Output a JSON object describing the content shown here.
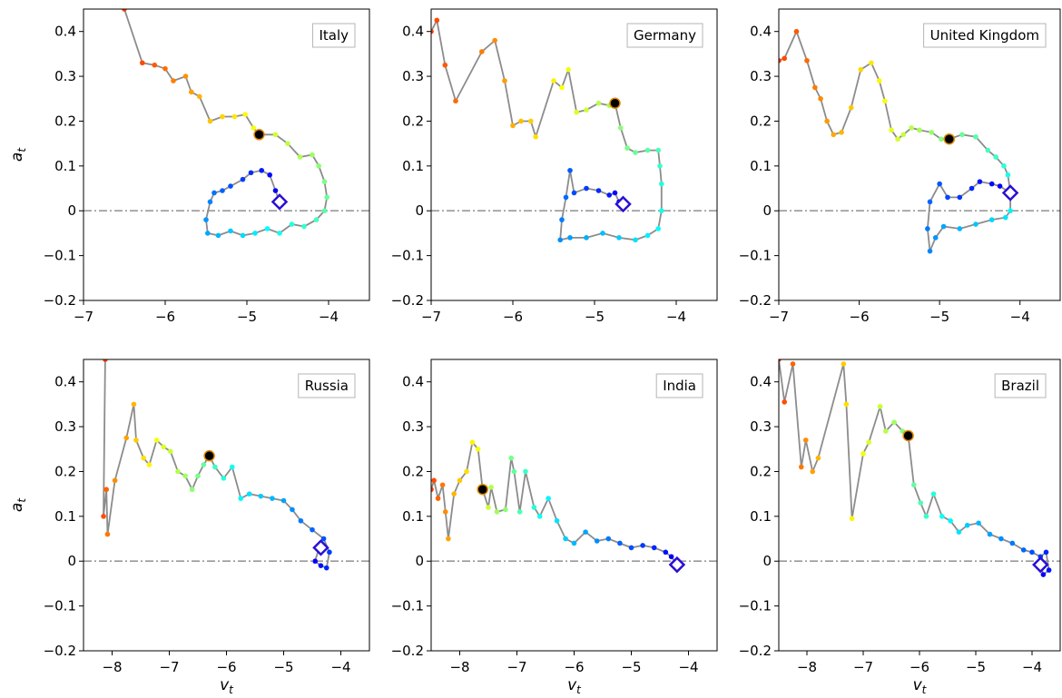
{
  "chart_data": [
    {
      "type": "scatter",
      "title": "Italy",
      "xlabel": "",
      "ylabel": "a_t",
      "xlim": [
        -7,
        -3.5
      ],
      "ylim": [
        -0.2,
        0.45
      ],
      "xticks": [
        -7,
        -6,
        -5,
        -4
      ],
      "yticks": [
        -0.2,
        -0.1,
        0.0,
        0.1,
        0.2,
        0.3,
        0.4
      ],
      "reference_line_y": 0,
      "start_marker": [
        -4.85,
        0.17
      ],
      "end_marker": [
        -4.6,
        0.02
      ],
      "points": [
        [
          -6.5,
          0.45
        ],
        [
          -6.28,
          0.33
        ],
        [
          -6.13,
          0.325
        ],
        [
          -6.0,
          0.317
        ],
        [
          -5.9,
          0.29
        ],
        [
          -5.75,
          0.3
        ],
        [
          -5.68,
          0.265
        ],
        [
          -5.58,
          0.255
        ],
        [
          -5.45,
          0.2
        ],
        [
          -5.3,
          0.21
        ],
        [
          -5.15,
          0.21
        ],
        [
          -5.02,
          0.215
        ],
        [
          -4.92,
          0.185
        ],
        [
          -4.85,
          0.17
        ],
        [
          -4.65,
          0.17
        ],
        [
          -4.5,
          0.15
        ],
        [
          -4.35,
          0.12
        ],
        [
          -4.2,
          0.125
        ],
        [
          -4.12,
          0.1
        ],
        [
          -4.05,
          0.065
        ],
        [
          -4.02,
          0.03
        ],
        [
          -4.05,
          0.0
        ],
        [
          -4.15,
          -0.02
        ],
        [
          -4.3,
          -0.035
        ],
        [
          -4.45,
          -0.03
        ],
        [
          -4.6,
          -0.05
        ],
        [
          -4.75,
          -0.04
        ],
        [
          -4.9,
          -0.05
        ],
        [
          -5.05,
          -0.055
        ],
        [
          -5.2,
          -0.045
        ],
        [
          -5.35,
          -0.055
        ],
        [
          -5.48,
          -0.05
        ],
        [
          -5.5,
          -0.02
        ],
        [
          -5.45,
          0.02
        ],
        [
          -5.4,
          0.04
        ],
        [
          -5.3,
          0.045
        ],
        [
          -5.2,
          0.055
        ],
        [
          -5.05,
          0.07
        ],
        [
          -4.95,
          0.085
        ],
        [
          -4.82,
          0.09
        ],
        [
          -4.72,
          0.08
        ],
        [
          -4.65,
          0.045
        ],
        [
          -4.6,
          0.02
        ]
      ]
    },
    {
      "type": "scatter",
      "title": "Germany",
      "xlabel": "",
      "ylabel": "",
      "xlim": [
        -7,
        -3.5
      ],
      "ylim": [
        -0.2,
        0.45
      ],
      "xticks": [
        -7,
        -6,
        -5,
        -4
      ],
      "yticks": [
        -0.2,
        -0.1,
        0.0,
        0.1,
        0.2,
        0.3,
        0.4
      ],
      "reference_line_y": 0,
      "start_marker": [
        -4.75,
        0.24
      ],
      "end_marker": [
        -4.65,
        0.015
      ],
      "points": [
        [
          -7.0,
          0.4
        ],
        [
          -6.93,
          0.425
        ],
        [
          -6.83,
          0.325
        ],
        [
          -6.7,
          0.245
        ],
        [
          -6.38,
          0.355
        ],
        [
          -6.22,
          0.38
        ],
        [
          -6.1,
          0.29
        ],
        [
          -6.0,
          0.19
        ],
        [
          -5.9,
          0.2
        ],
        [
          -5.78,
          0.2
        ],
        [
          -5.72,
          0.165
        ],
        [
          -5.5,
          0.29
        ],
        [
          -5.4,
          0.275
        ],
        [
          -5.32,
          0.315
        ],
        [
          -5.22,
          0.22
        ],
        [
          -5.1,
          0.225
        ],
        [
          -4.95,
          0.24
        ],
        [
          -4.82,
          0.235
        ],
        [
          -4.75,
          0.24
        ],
        [
          -4.68,
          0.185
        ],
        [
          -4.6,
          0.14
        ],
        [
          -4.5,
          0.13
        ],
        [
          -4.35,
          0.135
        ],
        [
          -4.22,
          0.135
        ],
        [
          -4.2,
          0.1
        ],
        [
          -4.18,
          0.06
        ],
        [
          -4.18,
          0.0
        ],
        [
          -4.22,
          -0.04
        ],
        [
          -4.35,
          -0.055
        ],
        [
          -4.5,
          -0.065
        ],
        [
          -4.7,
          -0.06
        ],
        [
          -4.9,
          -0.05
        ],
        [
          -5.1,
          -0.06
        ],
        [
          -5.3,
          -0.06
        ],
        [
          -5.42,
          -0.065
        ],
        [
          -5.4,
          -0.02
        ],
        [
          -5.35,
          0.03
        ],
        [
          -5.3,
          0.09
        ],
        [
          -5.25,
          0.04
        ],
        [
          -5.1,
          0.05
        ],
        [
          -4.95,
          0.045
        ],
        [
          -4.82,
          0.035
        ],
        [
          -4.75,
          0.04
        ],
        [
          -4.7,
          0.02
        ],
        [
          -4.65,
          0.015
        ]
      ]
    },
    {
      "type": "scatter",
      "title": "United Kingdom",
      "xlabel": "",
      "ylabel": "",
      "xlim": [
        -7,
        -3.5
      ],
      "ylim": [
        -0.2,
        0.45
      ],
      "xticks": [
        -7,
        -6,
        -5,
        -4
      ],
      "yticks": [
        -0.2,
        -0.1,
        0.0,
        0.1,
        0.2,
        0.3,
        0.4
      ],
      "reference_line_y": 0,
      "start_marker": [
        -4.88,
        0.16
      ],
      "end_marker": [
        -4.12,
        0.04
      ],
      "points": [
        [
          -7.0,
          0.335
        ],
        [
          -6.93,
          0.34
        ],
        [
          -6.78,
          0.4
        ],
        [
          -6.65,
          0.335
        ],
        [
          -6.55,
          0.275
        ],
        [
          -6.48,
          0.25
        ],
        [
          -6.4,
          0.2
        ],
        [
          -6.32,
          0.17
        ],
        [
          -6.22,
          0.175
        ],
        [
          -6.1,
          0.23
        ],
        [
          -5.98,
          0.315
        ],
        [
          -5.85,
          0.33
        ],
        [
          -5.75,
          0.29
        ],
        [
          -5.68,
          0.245
        ],
        [
          -5.6,
          0.18
        ],
        [
          -5.52,
          0.16
        ],
        [
          -5.45,
          0.17
        ],
        [
          -5.35,
          0.185
        ],
        [
          -5.25,
          0.18
        ],
        [
          -5.1,
          0.175
        ],
        [
          -4.98,
          0.16
        ],
        [
          -4.88,
          0.16
        ],
        [
          -4.72,
          0.17
        ],
        [
          -4.55,
          0.165
        ],
        [
          -4.4,
          0.135
        ],
        [
          -4.3,
          0.12
        ],
        [
          -4.2,
          0.1
        ],
        [
          -4.15,
          0.08
        ],
        [
          -4.12,
          0.04
        ],
        [
          -4.12,
          0.0
        ],
        [
          -4.18,
          -0.015
        ],
        [
          -4.35,
          -0.02
        ],
        [
          -4.55,
          -0.03
        ],
        [
          -4.75,
          -0.04
        ],
        [
          -4.95,
          -0.035
        ],
        [
          -5.05,
          -0.06
        ],
        [
          -5.12,
          -0.09
        ],
        [
          -5.15,
          -0.04
        ],
        [
          -5.12,
          0.02
        ],
        [
          -5.0,
          0.06
        ],
        [
          -4.9,
          0.03
        ],
        [
          -4.75,
          0.03
        ],
        [
          -4.6,
          0.05
        ],
        [
          -4.5,
          0.065
        ],
        [
          -4.35,
          0.06
        ],
        [
          -4.25,
          0.055
        ],
        [
          -4.12,
          0.04
        ]
      ]
    },
    {
      "type": "scatter",
      "title": "Russia",
      "xlabel": "v_t",
      "ylabel": "a_t",
      "xlim": [
        -8.5,
        -3.5
      ],
      "ylim": [
        -0.2,
        0.45
      ],
      "xticks": [
        -8,
        -7,
        -6,
        -5,
        -4
      ],
      "yticks": [
        -0.2,
        -0.1,
        0.0,
        0.1,
        0.2,
        0.3,
        0.4
      ],
      "reference_line_y": 0,
      "start_marker": [
        -6.3,
        0.235
      ],
      "end_marker": [
        -4.35,
        0.03
      ],
      "points": [
        [
          -8.12,
          0.45
        ],
        [
          -8.15,
          0.1
        ],
        [
          -8.1,
          0.16
        ],
        [
          -8.08,
          0.06
        ],
        [
          -7.95,
          0.18
        ],
        [
          -7.75,
          0.275
        ],
        [
          -7.62,
          0.35
        ],
        [
          -7.58,
          0.27
        ],
        [
          -7.45,
          0.23
        ],
        [
          -7.35,
          0.215
        ],
        [
          -7.22,
          0.27
        ],
        [
          -7.1,
          0.255
        ],
        [
          -6.98,
          0.245
        ],
        [
          -6.85,
          0.2
        ],
        [
          -6.72,
          0.19
        ],
        [
          -6.6,
          0.16
        ],
        [
          -6.5,
          0.19
        ],
        [
          -6.4,
          0.215
        ],
        [
          -6.3,
          0.235
        ],
        [
          -6.2,
          0.21
        ],
        [
          -6.05,
          0.185
        ],
        [
          -5.9,
          0.21
        ],
        [
          -5.75,
          0.14
        ],
        [
          -5.6,
          0.15
        ],
        [
          -5.4,
          0.145
        ],
        [
          -5.2,
          0.14
        ],
        [
          -5.0,
          0.135
        ],
        [
          -4.85,
          0.115
        ],
        [
          -4.7,
          0.09
        ],
        [
          -4.5,
          0.07
        ],
        [
          -4.3,
          0.05
        ],
        [
          -4.2,
          0.02
        ],
        [
          -4.25,
          -0.015
        ],
        [
          -4.35,
          -0.01
        ],
        [
          -4.45,
          0.0
        ],
        [
          -4.38,
          0.03
        ]
      ]
    },
    {
      "type": "scatter",
      "title": "India",
      "xlabel": "v_t",
      "ylabel": "",
      "xlim": [
        -8.5,
        -3.5
      ],
      "ylim": [
        -0.2,
        0.45
      ],
      "xticks": [
        -8,
        -7,
        -6,
        -5,
        -4
      ],
      "yticks": [
        -0.2,
        -0.1,
        0.0,
        0.1,
        0.2,
        0.3,
        0.4
      ],
      "reference_line_y": 0,
      "start_marker": [
        -7.6,
        0.16
      ],
      "end_marker": [
        -4.2,
        -0.008
      ],
      "points": [
        [
          -8.5,
          0.16
        ],
        [
          -8.45,
          0.18
        ],
        [
          -8.38,
          0.14
        ],
        [
          -8.3,
          0.17
        ],
        [
          -8.25,
          0.11
        ],
        [
          -8.2,
          0.05
        ],
        [
          -8.1,
          0.15
        ],
        [
          -8.0,
          0.18
        ],
        [
          -7.88,
          0.2
        ],
        [
          -7.78,
          0.265
        ],
        [
          -7.68,
          0.25
        ],
        [
          -7.6,
          0.16
        ],
        [
          -7.5,
          0.12
        ],
        [
          -7.45,
          0.165
        ],
        [
          -7.35,
          0.11
        ],
        [
          -7.2,
          0.115
        ],
        [
          -7.1,
          0.23
        ],
        [
          -7.05,
          0.2
        ],
        [
          -6.95,
          0.11
        ],
        [
          -6.85,
          0.2
        ],
        [
          -6.7,
          0.12
        ],
        [
          -6.6,
          0.1
        ],
        [
          -6.45,
          0.14
        ],
        [
          -6.3,
          0.09
        ],
        [
          -6.15,
          0.05
        ],
        [
          -6.0,
          0.04
        ],
        [
          -5.8,
          0.065
        ],
        [
          -5.6,
          0.045
        ],
        [
          -5.4,
          0.05
        ],
        [
          -5.2,
          0.04
        ],
        [
          -5.0,
          0.03
        ],
        [
          -4.8,
          0.035
        ],
        [
          -4.6,
          0.03
        ],
        [
          -4.4,
          0.02
        ],
        [
          -4.3,
          0.01
        ],
        [
          -4.2,
          -0.008
        ]
      ]
    },
    {
      "type": "scatter",
      "title": "Brazil",
      "xlabel": "v_t",
      "ylabel": "",
      "xlim": [
        -8.5,
        -3.5
      ],
      "ylim": [
        -0.2,
        0.45
      ],
      "xticks": [
        -8,
        -7,
        -6,
        -5,
        -4
      ],
      "yticks": [
        -0.2,
        -0.1,
        0.0,
        0.1,
        0.2,
        0.3,
        0.4
      ],
      "reference_line_y": 0,
      "start_marker": [
        -6.2,
        0.28
      ],
      "end_marker": [
        -3.85,
        -0.008
      ],
      "points": [
        [
          -8.5,
          0.45
        ],
        [
          -8.4,
          0.355
        ],
        [
          -8.25,
          0.44
        ],
        [
          -8.1,
          0.21
        ],
        [
          -8.02,
          0.27
        ],
        [
          -7.9,
          0.2
        ],
        [
          -7.8,
          0.23
        ],
        [
          -7.35,
          0.44
        ],
        [
          -7.3,
          0.35
        ],
        [
          -7.2,
          0.095
        ],
        [
          -7.0,
          0.24
        ],
        [
          -6.9,
          0.265
        ],
        [
          -6.7,
          0.345
        ],
        [
          -6.6,
          0.29
        ],
        [
          -6.45,
          0.31
        ],
        [
          -6.3,
          0.29
        ],
        [
          -6.2,
          0.28
        ],
        [
          -6.1,
          0.17
        ],
        [
          -5.98,
          0.13
        ],
        [
          -5.88,
          0.1
        ],
        [
          -5.75,
          0.15
        ],
        [
          -5.6,
          0.1
        ],
        [
          -5.45,
          0.09
        ],
        [
          -5.3,
          0.065
        ],
        [
          -5.15,
          0.08
        ],
        [
          -4.95,
          0.085
        ],
        [
          -4.75,
          0.06
        ],
        [
          -4.55,
          0.05
        ],
        [
          -4.35,
          0.04
        ],
        [
          -4.15,
          0.025
        ],
        [
          -4.0,
          0.02
        ],
        [
          -3.85,
          0.01
        ],
        [
          -3.75,
          0.02
        ],
        [
          -3.7,
          -0.02
        ],
        [
          -3.8,
          -0.03
        ],
        [
          -3.85,
          -0.008
        ]
      ]
    }
  ]
}
